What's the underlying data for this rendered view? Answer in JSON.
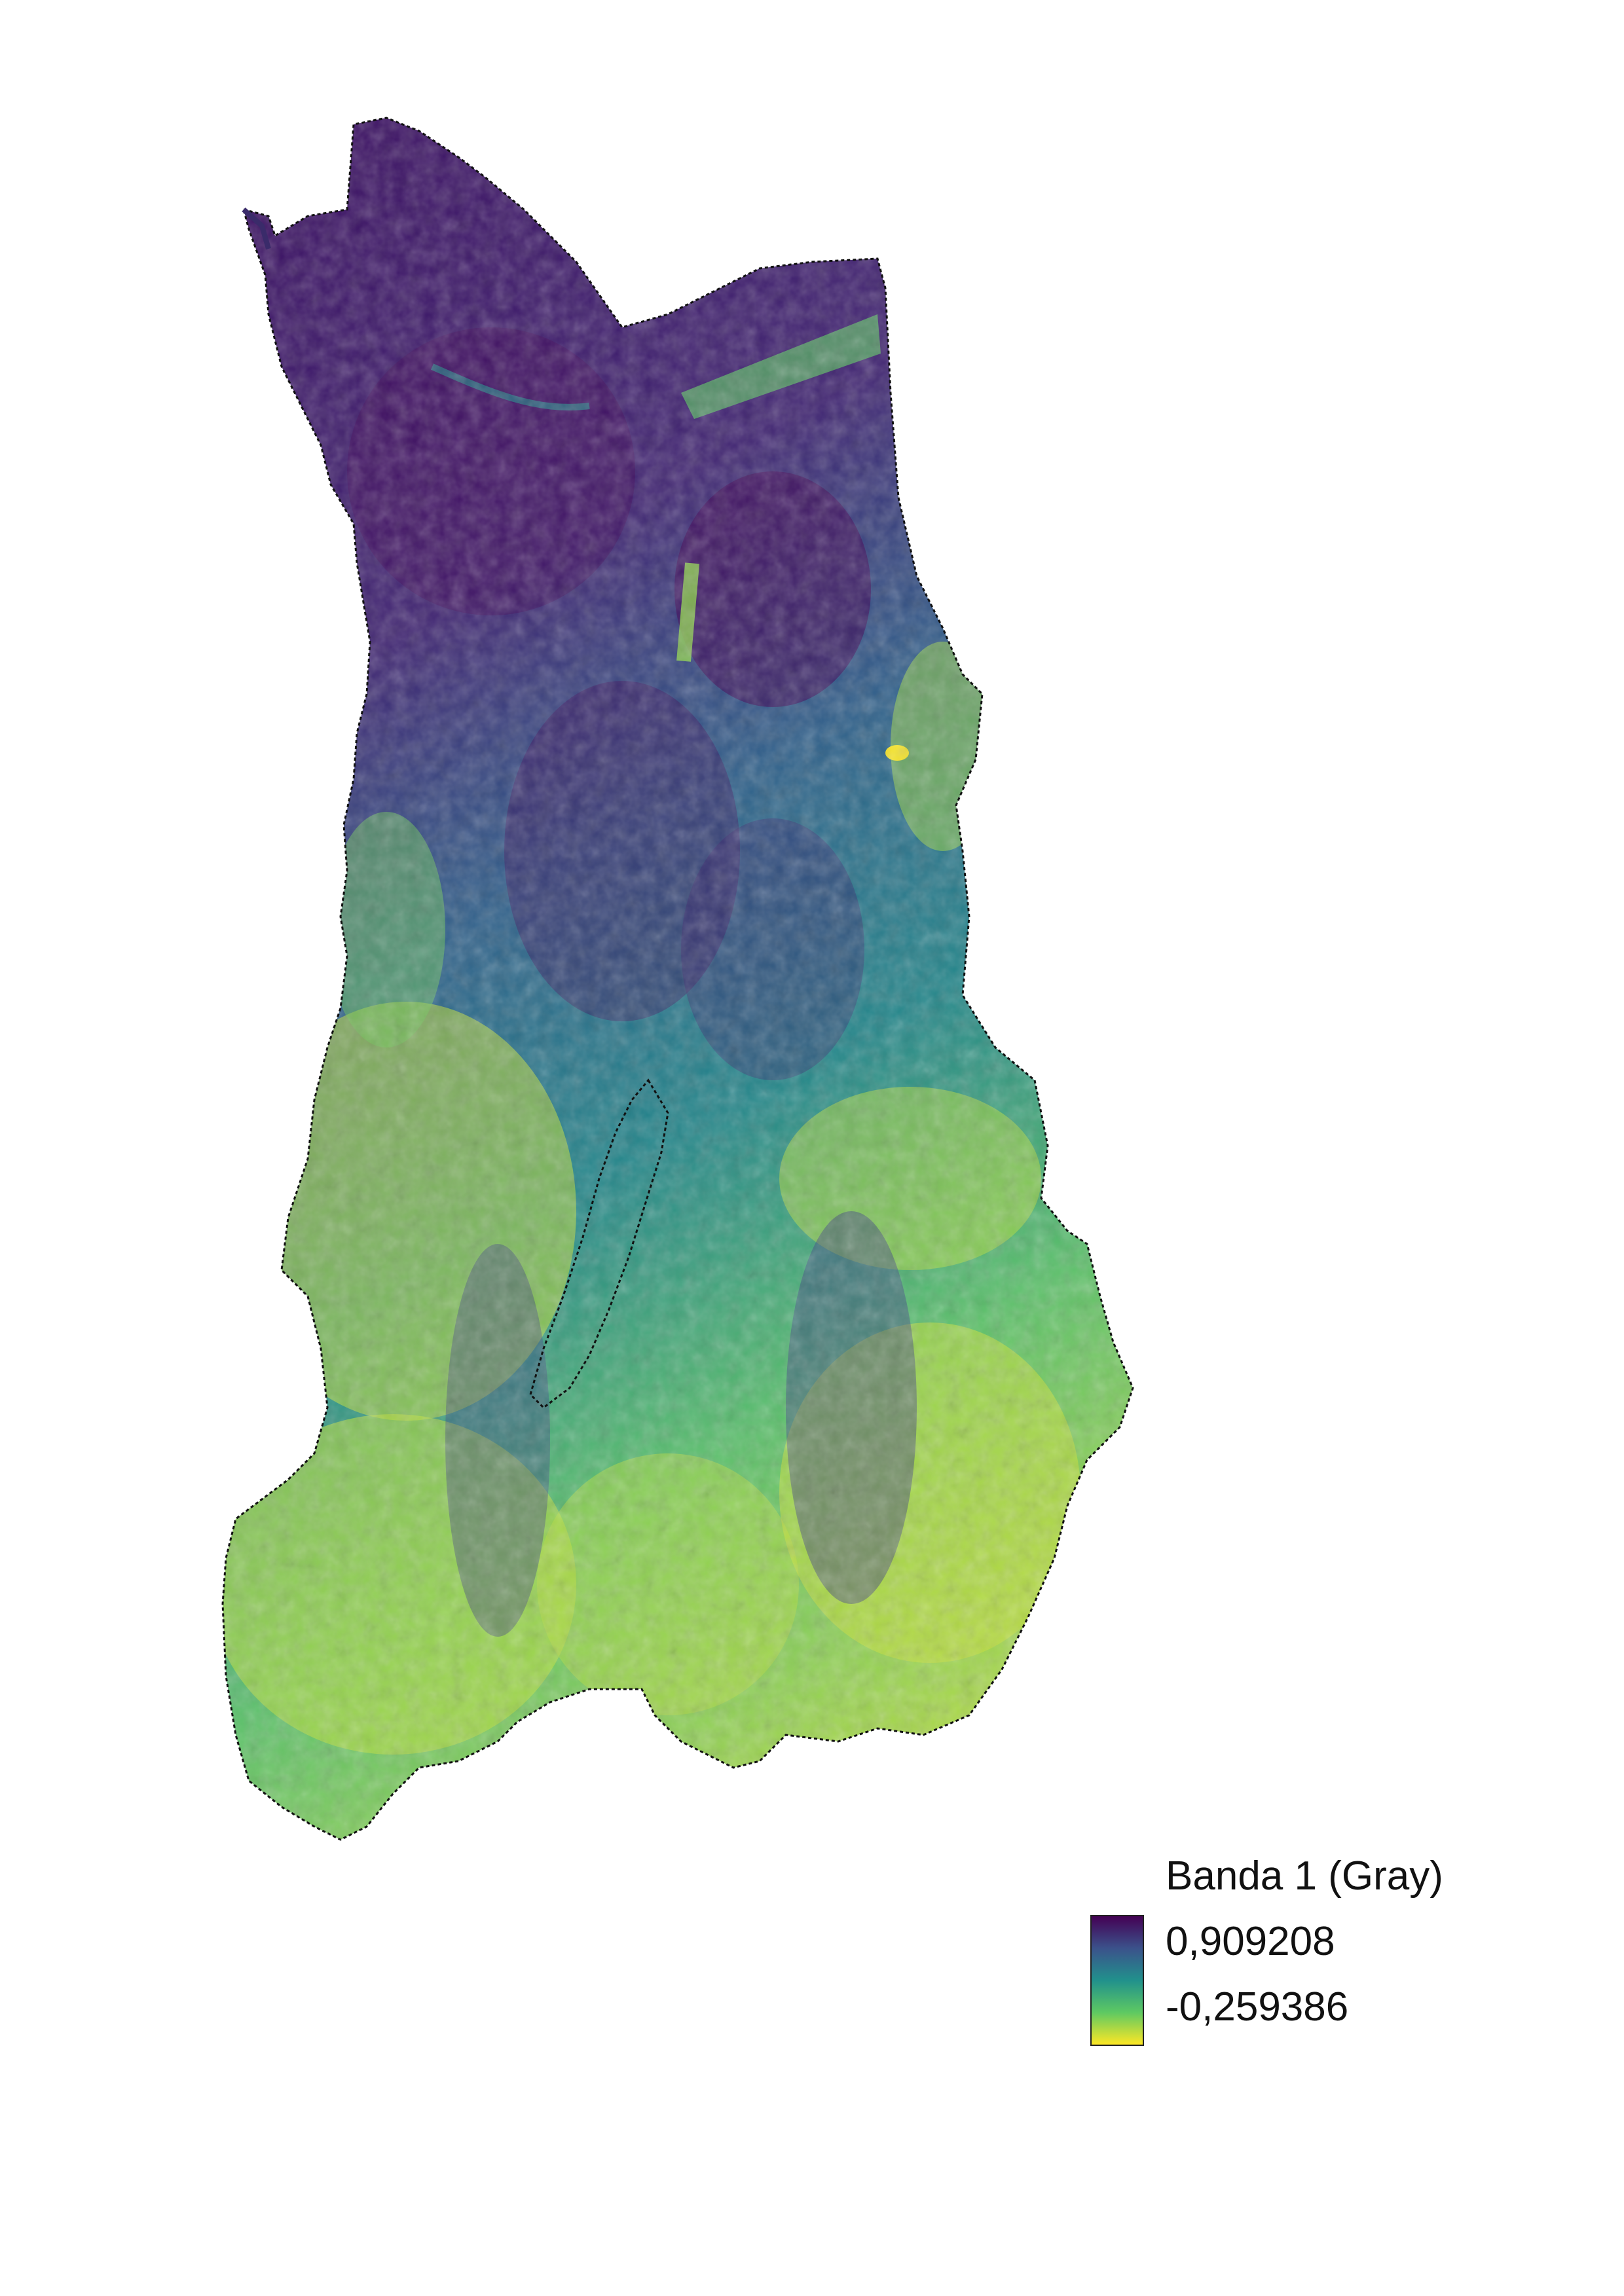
{
  "map": {
    "raster_band": "Banda 1 (Gray)",
    "colormap": "viridis (reversed)",
    "colors": {
      "high": "#440154",
      "mid_high": "#3b528b",
      "mid": "#21918c",
      "mid_low": "#5ec962",
      "low": "#fde725",
      "boundary": "#111111",
      "background": "#ffffff"
    }
  },
  "legend": {
    "title": "Banda 1 (Gray)",
    "max_label": "0,909208",
    "min_label": "-0,259386",
    "max_value": 0.909208,
    "min_value": -0.259386
  }
}
